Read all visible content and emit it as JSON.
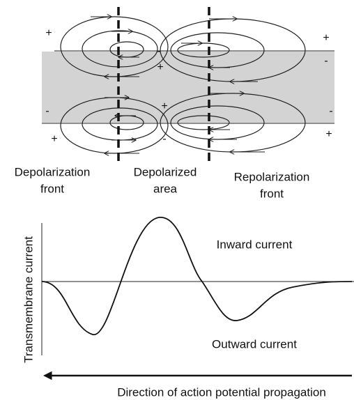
{
  "signs": [
    "+",
    "-",
    "+",
    "+",
    "-",
    "-",
    "+",
    "-",
    "+",
    "-",
    "+"
  ],
  "regions": [
    {
      "lines": [
        "Depolarization",
        "front"
      ]
    },
    {
      "lines": [
        "Depolarized",
        "area"
      ]
    },
    {
      "lines": [
        "Repolarization",
        "front"
      ]
    }
  ],
  "plot": {
    "inward_label": "Inward current",
    "outward_label": "Outward current",
    "y_axis_label": "Transmembrane current"
  },
  "direction_label": "Direction of action potential propagation"
}
